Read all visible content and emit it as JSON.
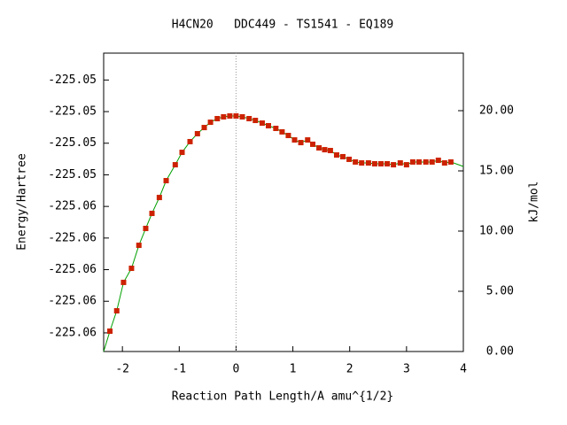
{
  "chart_data": {
    "type": "line",
    "title": "H4CN20   DDC449 - TS1541 - EQ189",
    "xlabel": "Reaction Path Length/A amu^{1/2}",
    "ylabel": "Energy/Hartree",
    "y2label": "kJ/mol",
    "xlim": [
      -2.33,
      4.0
    ],
    "xticks": [
      -2,
      -1,
      0,
      1,
      2,
      3,
      4
    ],
    "ylim": [
      -225.05959,
      -225.05015
    ],
    "yticks": [
      {
        "value": -225.059,
        "label": "-225.06"
      },
      {
        "value": -225.058,
        "label": "-225.06"
      },
      {
        "value": -225.057,
        "label": "-225.06"
      },
      {
        "value": -225.056,
        "label": "-225.06"
      },
      {
        "value": -225.055,
        "label": "-225.06"
      },
      {
        "value": -225.054,
        "label": "-225.05"
      },
      {
        "value": -225.053,
        "label": "-225.05"
      },
      {
        "value": -225.052,
        "label": "-225.05"
      },
      {
        "value": -225.051,
        "label": "-225.05"
      }
    ],
    "y2lim": [
      0,
      24.78
    ],
    "y2ticks": [
      {
        "value": 0,
        "label": "0.00"
      },
      {
        "value": 5,
        "label": "5.00"
      },
      {
        "value": 10,
        "label": "10.00"
      },
      {
        "value": 15,
        "label": "15.00"
      },
      {
        "value": 20,
        "label": "20.00"
      }
    ],
    "vline": 0,
    "series": [
      {
        "color": "#00a000",
        "marker": false,
        "axis": "y2",
        "x": [
          -2.33,
          -2.22,
          -2.1,
          -1.98,
          -1.84,
          -1.71,
          -1.59,
          -1.48,
          -1.35,
          -1.23,
          -1.07,
          -0.95,
          -0.81,
          -0.68,
          -0.56,
          -0.45,
          -0.33,
          -0.22,
          -0.11,
          0,
          0.11,
          0.23,
          0.34,
          0.46,
          0.57,
          0.7,
          0.81,
          0.92,
          1.03,
          1.14,
          1.26,
          1.35,
          1.46,
          1.56,
          1.66,
          1.77,
          1.88,
          1.99,
          2.1,
          2.21,
          2.33,
          2.44,
          2.55,
          2.66,
          2.77,
          2.89,
          3.0,
          3.11,
          3.22,
          3.34,
          3.45,
          3.56,
          3.67,
          3.78,
          4.0
        ],
        "values": [
          0,
          1.69,
          3.38,
          5.74,
          6.91,
          8.82,
          10.22,
          11.47,
          12.79,
          14.19,
          15.51,
          16.54,
          17.43,
          18.09,
          18.6,
          19.04,
          19.34,
          19.49,
          19.56,
          19.56,
          19.49,
          19.34,
          19.19,
          18.97,
          18.75,
          18.53,
          18.24,
          17.94,
          17.57,
          17.35,
          17.57,
          17.21,
          16.91,
          16.76,
          16.69,
          16.32,
          16.18,
          15.96,
          15.74,
          15.66,
          15.66,
          15.59,
          15.59,
          15.59,
          15.51,
          15.66,
          15.51,
          15.74,
          15.74,
          15.74,
          15.74,
          15.88,
          15.66,
          15.74,
          15.37
        ]
      },
      {
        "color": "#cc2200",
        "marker": true,
        "axis": "y2",
        "x": [
          -2.22,
          -2.1,
          -1.98,
          -1.84,
          -1.71,
          -1.59,
          -1.48,
          -1.35,
          -1.23,
          -1.07,
          -0.95,
          -0.81,
          -0.68,
          -0.56,
          -0.45,
          -0.33,
          -0.22,
          -0.11,
          0,
          0.11,
          0.23,
          0.34,
          0.46,
          0.57,
          0.7,
          0.81,
          0.92,
          1.03,
          1.14,
          1.26,
          1.35,
          1.46,
          1.56,
          1.66,
          1.77,
          1.88,
          1.99,
          2.1,
          2.21,
          2.33,
          2.44,
          2.55,
          2.66,
          2.77,
          2.89,
          3.0,
          3.11,
          3.22,
          3.34,
          3.45,
          3.56,
          3.67,
          3.78
        ],
        "values": [
          1.69,
          3.38,
          5.74,
          6.91,
          8.82,
          10.22,
          11.47,
          12.79,
          14.19,
          15.51,
          16.54,
          17.43,
          18.09,
          18.6,
          19.04,
          19.34,
          19.49,
          19.56,
          19.56,
          19.49,
          19.34,
          19.19,
          18.97,
          18.75,
          18.53,
          18.24,
          17.94,
          17.57,
          17.35,
          17.57,
          17.21,
          16.91,
          16.76,
          16.69,
          16.32,
          16.18,
          15.96,
          15.74,
          15.66,
          15.66,
          15.59,
          15.59,
          15.59,
          15.51,
          15.66,
          15.51,
          15.74,
          15.74,
          15.74,
          15.74,
          15.88,
          15.66,
          15.74
        ]
      }
    ]
  }
}
